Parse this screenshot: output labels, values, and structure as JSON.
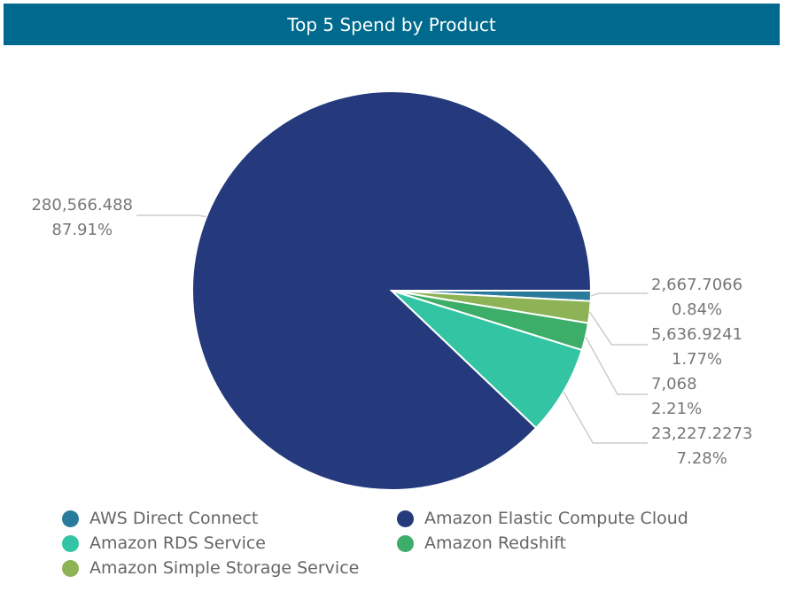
{
  "chart_data": {
    "type": "pie",
    "title": "Top 5 Spend by Product",
    "slices": [
      {
        "name": "AWS Direct Connect",
        "value": 2667.7066,
        "value_label": "2,667.7066",
        "percent_label": "0.84%",
        "color": "#2a7a9c"
      },
      {
        "name": "Amazon Simple Storage Service",
        "value": 5636.9241,
        "value_label": "5,636.9241",
        "percent_label": "1.77%",
        "color": "#8db356"
      },
      {
        "name": "Amazon Redshift",
        "value": 7068,
        "value_label": "7,068",
        "percent_label": "2.21%",
        "color": "#3dae69"
      },
      {
        "name": "Amazon RDS Service",
        "value": 23227.2273,
        "value_label": "23,227.2273",
        "percent_label": "7.28%",
        "color": "#33c4a3"
      },
      {
        "name": "Amazon Elastic Compute Cloud",
        "value": 280566.488,
        "value_label": "280,566.488",
        "percent_label": "87.91%",
        "color": "#253a7c"
      }
    ],
    "legend": [
      "AWS Direct Connect",
      "Amazon Elastic Compute Cloud",
      "Amazon RDS Service",
      "Amazon Redshift",
      "Amazon Simple Storage Service"
    ],
    "legend_placement": "bottom-left"
  }
}
